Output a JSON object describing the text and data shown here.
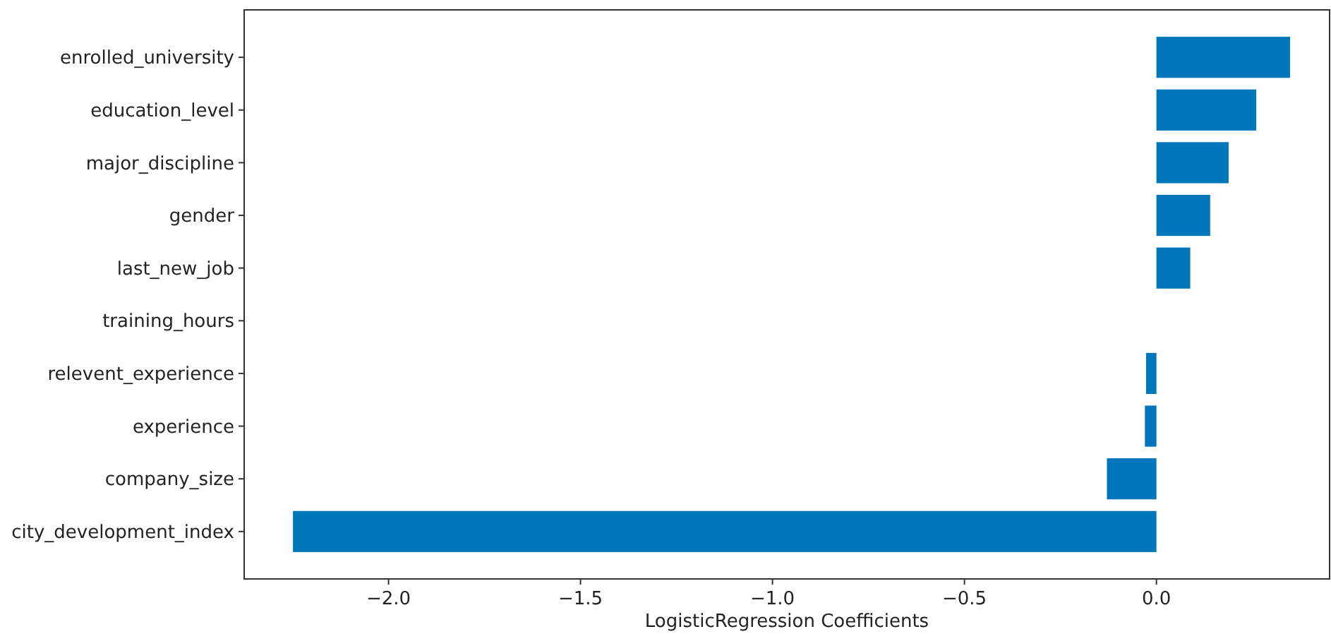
{
  "chart_data": {
    "type": "bar",
    "orientation": "horizontal",
    "xlabel": "LogisticRegression Coefficients",
    "categories": [
      "enrolled_university",
      "education_level",
      "major_discipline",
      "gender",
      "last_new_job",
      "training_hours",
      "relevent_experience",
      "experience",
      "company_size",
      "city_development_index"
    ],
    "values": [
      0.348,
      0.26,
      0.188,
      0.14,
      0.088,
      0.0,
      -0.027,
      -0.03,
      -0.129,
      -2.249
    ],
    "color": "#0077bb",
    "xlim": [
      -2.376,
      0.451
    ],
    "xticks": [
      {
        "value": -2.0,
        "label": "−2.0"
      },
      {
        "value": -1.5,
        "label": "−1.5"
      },
      {
        "value": -1.0,
        "label": "−1.0"
      },
      {
        "value": -0.5,
        "label": "−0.5"
      },
      {
        "value": 0.0,
        "label": "0.0"
      }
    ],
    "grid": false
  }
}
